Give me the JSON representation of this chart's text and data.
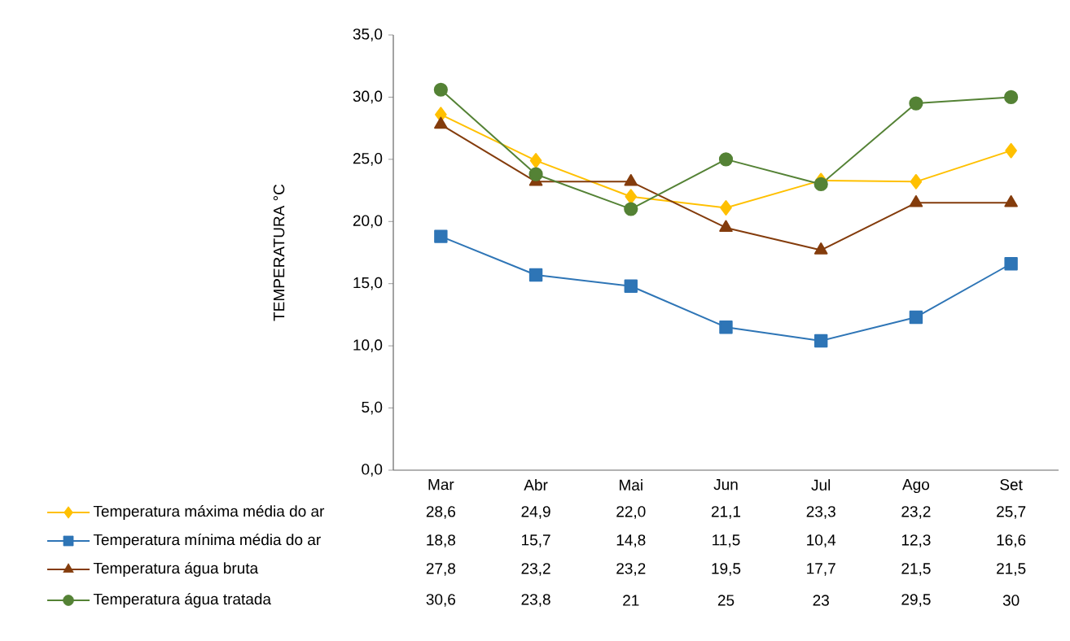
{
  "chart_data": {
    "type": "line",
    "ylabel": "TEMPERATURA °C",
    "categories": [
      "Mar",
      "Abr",
      "Mai",
      "Jun",
      "Jul",
      "Ago",
      "Set"
    ],
    "ylim": [
      0,
      35
    ],
    "yticks": [
      {
        "value": 0,
        "label": "0,0"
      },
      {
        "value": 5,
        "label": "5,0"
      },
      {
        "value": 10,
        "label": "10,0"
      },
      {
        "value": 15,
        "label": "15,0"
      },
      {
        "value": 20,
        "label": "20,0"
      },
      {
        "value": 25,
        "label": "25,0"
      },
      {
        "value": 30,
        "label": "30,0"
      },
      {
        "value": 35,
        "label": "35,0"
      }
    ],
    "legend": "bottom",
    "grid": false,
    "series": [
      {
        "name": "Temperatura máxima média do ar",
        "color": "#ffc000",
        "marker": "diamond",
        "values": [
          28.6,
          24.9,
          22.0,
          21.1,
          23.3,
          23.2,
          25.7
        ],
        "value_labels": [
          "28,6",
          "24,9",
          "22,0",
          "21,1",
          "23,3",
          "23,2",
          "25,7"
        ]
      },
      {
        "name": "Temperatura mínima média do ar",
        "color": "#2e75b6",
        "marker": "square",
        "values": [
          18.8,
          15.7,
          14.8,
          11.5,
          10.4,
          12.3,
          16.6
        ],
        "value_labels": [
          "18,8",
          "15,7",
          "14,8",
          "11,5",
          "10,4",
          "12,3",
          "16,6"
        ]
      },
      {
        "name": "Temperatura água bruta",
        "color": "#843c0c",
        "marker": "triangle",
        "values": [
          27.8,
          23.2,
          23.2,
          19.5,
          17.7,
          21.5,
          21.5
        ],
        "value_labels": [
          "27,8",
          "23,2",
          "23,2",
          "19,5",
          "17,7",
          "21,5",
          "21,5"
        ]
      },
      {
        "name": "Temperatura água tratada",
        "color": "#548235",
        "marker": "circle",
        "values": [
          30.6,
          23.8,
          21,
          25,
          23,
          29.5,
          30
        ],
        "value_labels": [
          "30,6",
          "23,8",
          "21",
          "25",
          "23",
          "29,5",
          "30"
        ]
      }
    ]
  }
}
